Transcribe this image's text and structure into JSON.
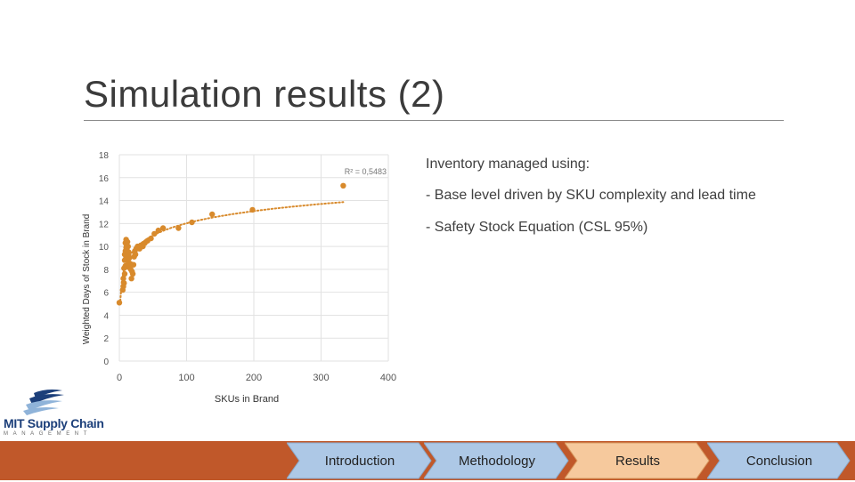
{
  "slide": {
    "title": "Simulation results (2)"
  },
  "notes": {
    "heading": "Inventory managed using:",
    "bullets": [
      "- Base level driven by SKU complexity and lead time",
      "- Safety Stock Equation (CSL 95%)"
    ]
  },
  "logo": {
    "name": "MIT Supply Chain",
    "sub": "MANAGEMENT"
  },
  "nav": [
    {
      "label": "Introduction",
      "active": false
    },
    {
      "label": "Methodology",
      "active": false
    },
    {
      "label": "Results",
      "active": true
    },
    {
      "label": "Conclusion",
      "active": false
    }
  ],
  "colors": {
    "accent": "#c0582a",
    "marker": "#d88a2c",
    "nav_inactive": "#adc8e6",
    "nav_active": "#f6c99d"
  },
  "chart_data": {
    "type": "scatter",
    "title": "",
    "xlabel": "SKUs in Brand",
    "ylabel": "Weighted Days of Stock in Brand",
    "xlim": [
      0,
      400
    ],
    "ylim": [
      0,
      18
    ],
    "x_ticks": [
      "0",
      "100",
      "200",
      "300",
      "400"
    ],
    "y_ticks": [
      "0",
      "2",
      "4",
      "6",
      "8",
      "10",
      "12",
      "14",
      "16",
      "18"
    ],
    "grid": true,
    "trendline": {
      "type": "logarithmic",
      "label": "R² = 0,5483",
      "x_range": [
        1,
        333
      ]
    },
    "points": [
      [
        0,
        5.1
      ],
      [
        5,
        6.2
      ],
      [
        6,
        6.5
      ],
      [
        7,
        6.8
      ],
      [
        6,
        7.2
      ],
      [
        8,
        7.6
      ],
      [
        7,
        8.1
      ],
      [
        9,
        8.3
      ],
      [
        8,
        8.8
      ],
      [
        10,
        9.0
      ],
      [
        8,
        9.3
      ],
      [
        9,
        9.6
      ],
      [
        10,
        9.9
      ],
      [
        11,
        10.1
      ],
      [
        9,
        10.3
      ],
      [
        10,
        10.6
      ],
      [
        12,
        10.4
      ],
      [
        13,
        10.0
      ],
      [
        11,
        9.7
      ],
      [
        14,
        9.5
      ],
      [
        12,
        9.2
      ],
      [
        15,
        9.0
      ],
      [
        13,
        8.7
      ],
      [
        16,
        8.5
      ],
      [
        14,
        8.2
      ],
      [
        17,
        8.0
      ],
      [
        19,
        7.8
      ],
      [
        18,
        7.2
      ],
      [
        20,
        7.6
      ],
      [
        21,
        8.4
      ],
      [
        22,
        9.1
      ],
      [
        23,
        9.6
      ],
      [
        24,
        9.3
      ],
      [
        25,
        9.8
      ],
      [
        27,
        10.0
      ],
      [
        30,
        9.8
      ],
      [
        32,
        10.1
      ],
      [
        35,
        10.0
      ],
      [
        38,
        10.3
      ],
      [
        42,
        10.5
      ],
      [
        47,
        10.7
      ],
      [
        52,
        11.1
      ],
      [
        58,
        11.4
      ],
      [
        65,
        11.6
      ],
      [
        88,
        11.6
      ],
      [
        108,
        12.1
      ],
      [
        138,
        12.8
      ],
      [
        198,
        13.2
      ],
      [
        333,
        15.3
      ]
    ]
  }
}
